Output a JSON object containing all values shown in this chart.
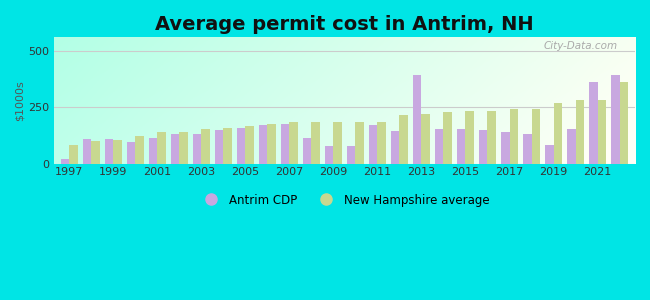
{
  "title": "Average permit cost in Antrim, NH",
  "ylabel": "$1000s",
  "background_outer": "#00e5e5",
  "years": [
    1997,
    1998,
    1999,
    2000,
    2001,
    2002,
    2003,
    2004,
    2005,
    2006,
    2007,
    2008,
    2009,
    2010,
    2011,
    2012,
    2013,
    2014,
    2015,
    2016,
    2017,
    2018,
    2019,
    2020,
    2021,
    2022
  ],
  "antrim": [
    20,
    110,
    110,
    95,
    115,
    130,
    130,
    150,
    160,
    170,
    175,
    115,
    80,
    80,
    170,
    145,
    390,
    155,
    155,
    150,
    140,
    130,
    85,
    155,
    360,
    390
  ],
  "nh_avg": [
    85,
    100,
    105,
    125,
    140,
    140,
    155,
    160,
    165,
    175,
    185,
    185,
    185,
    185,
    185,
    215,
    220,
    230,
    235,
    235,
    240,
    240,
    270,
    280,
    280,
    360
  ],
  "antrim_color": "#c8a8e0",
  "nh_color": "#c8d890",
  "ylim_max": 560,
  "yticks": [
    0,
    250,
    500
  ],
  "grid_color": "#d0d0d0",
  "title_fontsize": 14,
  "bar_width": 0.38,
  "legend_antrim": "Antrim CDP",
  "legend_nh": "New Hampshire average",
  "watermark": "City-Data.com",
  "bg_left": "#b0f0e8",
  "bg_right": "#f0faf0",
  "bg_top": "#f8fff8",
  "bg_bottom": "#c8ece0"
}
